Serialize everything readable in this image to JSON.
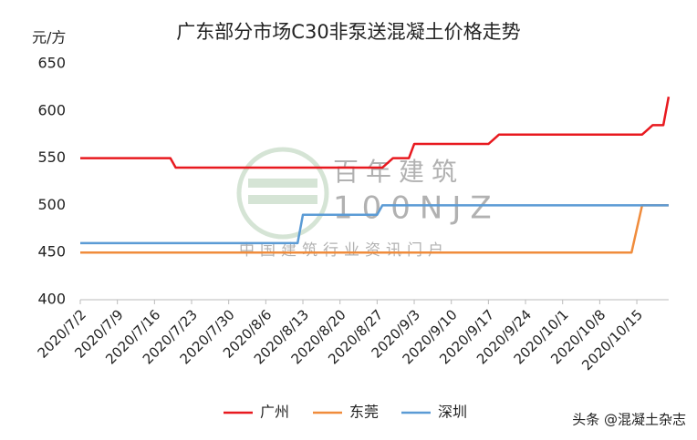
{
  "chart_data": {
    "type": "line",
    "title": "广东部分市场C30非泵送混凝土价格走势",
    "y_label": "元/方",
    "categories": [
      "2020/7/2",
      null,
      null,
      null,
      null,
      null,
      null,
      "2020/7/9",
      null,
      null,
      null,
      null,
      null,
      null,
      "2020/7/16",
      null,
      null,
      null,
      null,
      null,
      null,
      "2020/7/23",
      null,
      null,
      null,
      null,
      null,
      null,
      "2020/7/30",
      null,
      null,
      null,
      null,
      null,
      null,
      "2020/8/6",
      null,
      null,
      null,
      null,
      null,
      null,
      "2020/8/13",
      null,
      null,
      null,
      null,
      null,
      null,
      "2020/8/20",
      null,
      null,
      null,
      null,
      null,
      null,
      "2020/8/27",
      null,
      null,
      null,
      null,
      null,
      null,
      "2020/9/3",
      null,
      null,
      null,
      null,
      null,
      null,
      "2020/9/10",
      null,
      null,
      null,
      null,
      null,
      null,
      "2020/9/17",
      null,
      null,
      null,
      null,
      null,
      null,
      "2020/9/24",
      null,
      null,
      null,
      null,
      null,
      null,
      "2020/10/1",
      null,
      null,
      null,
      null,
      null,
      null,
      "2020/10/8",
      null,
      null,
      null,
      null,
      null,
      null,
      "2020/10/15",
      null,
      null,
      null,
      null,
      null,
      null
    ],
    "series": [
      {
        "name": "广州",
        "color": "#e8191f",
        "values": [
          550,
          550,
          550,
          550,
          550,
          550,
          550,
          550,
          550,
          550,
          550,
          550,
          550,
          550,
          550,
          550,
          550,
          550,
          540,
          540,
          540,
          540,
          540,
          540,
          540,
          540,
          540,
          540,
          540,
          540,
          540,
          540,
          540,
          540,
          540,
          540,
          540,
          540,
          540,
          540,
          540,
          540,
          540,
          540,
          540,
          540,
          540,
          540,
          540,
          540,
          540,
          540,
          540,
          540,
          540,
          540,
          540,
          540,
          545,
          550,
          550,
          550,
          550,
          565,
          565,
          565,
          565,
          565,
          565,
          565,
          565,
          565,
          565,
          565,
          565,
          565,
          565,
          565,
          570,
          575,
          575,
          575,
          575,
          575,
          575,
          575,
          575,
          575,
          575,
          575,
          575,
          575,
          575,
          575,
          575,
          575,
          575,
          575,
          575,
          575,
          575,
          575,
          575,
          575,
          575,
          575,
          575,
          580,
          585,
          585,
          585,
          615
        ]
      },
      {
        "name": "东莞",
        "color": "#f08c3c",
        "values": [
          450,
          450,
          450,
          450,
          450,
          450,
          450,
          450,
          450,
          450,
          450,
          450,
          450,
          450,
          450,
          450,
          450,
          450,
          450,
          450,
          450,
          450,
          450,
          450,
          450,
          450,
          450,
          450,
          450,
          450,
          450,
          450,
          450,
          450,
          450,
          450,
          450,
          450,
          450,
          450,
          450,
          450,
          450,
          450,
          450,
          450,
          450,
          450,
          450,
          450,
          450,
          450,
          450,
          450,
          450,
          450,
          450,
          450,
          450,
          450,
          450,
          450,
          450,
          450,
          450,
          450,
          450,
          450,
          450,
          450,
          450,
          450,
          450,
          450,
          450,
          450,
          450,
          450,
          450,
          450,
          450,
          450,
          450,
          450,
          450,
          450,
          450,
          450,
          450,
          450,
          450,
          450,
          450,
          450,
          450,
          450,
          450,
          450,
          450,
          450,
          450,
          450,
          450,
          450,
          450,
          475,
          500,
          500,
          500,
          500,
          500,
          500
        ]
      },
      {
        "name": "深圳",
        "color": "#5b9bd5",
        "values": [
          460,
          460,
          460,
          460,
          460,
          460,
          460,
          460,
          460,
          460,
          460,
          460,
          460,
          460,
          460,
          460,
          460,
          460,
          460,
          460,
          460,
          460,
          460,
          460,
          460,
          460,
          460,
          460,
          460,
          460,
          460,
          460,
          460,
          460,
          460,
          460,
          460,
          460,
          460,
          460,
          460,
          460,
          490,
          490,
          490,
          490,
          490,
          490,
          490,
          490,
          490,
          490,
          490,
          490,
          490,
          490,
          490,
          500,
          500,
          500,
          500,
          500,
          500,
          500,
          500,
          500,
          500,
          500,
          500,
          500,
          500,
          500,
          500,
          500,
          500,
          500,
          500,
          500,
          500,
          500,
          500,
          500,
          500,
          500,
          500,
          500,
          500,
          500,
          500,
          500,
          500,
          500,
          500,
          500,
          500,
          500,
          500,
          500,
          500,
          500,
          500,
          500,
          500,
          500,
          500,
          500,
          500,
          500,
          500,
          500,
          500,
          500
        ]
      }
    ],
    "ylim": [
      400,
      650
    ],
    "yticks": [
      400,
      450,
      500,
      550,
      600,
      650
    ],
    "grid": false,
    "legend": "bottom"
  },
  "watermark": {
    "brand": "百年建筑",
    "code": "100NJZ",
    "slogan": "中国建筑行业资讯门户"
  },
  "source": "头条 @混凝土杂志"
}
